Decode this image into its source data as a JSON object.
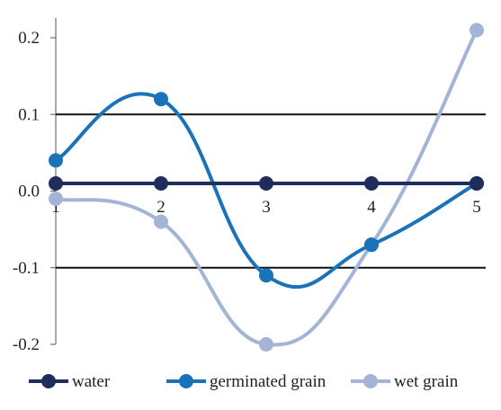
{
  "chart_data": {
    "type": "line",
    "smooth": true,
    "x": [
      1,
      2,
      3,
      4,
      5
    ],
    "x_tick_labels": [
      "1",
      "2",
      "3",
      "4",
      "5"
    ],
    "ylim": [
      -0.2,
      0.2
    ],
    "y_ticks": [
      0.2,
      0.1,
      0.0,
      -0.1,
      -0.2
    ],
    "y_tick_labels": [
      "0.2",
      "0.1",
      "0.0",
      "-0.1",
      "-0.2"
    ],
    "reference_lines": [
      0.1,
      -0.1
    ],
    "legend_position": "bottom",
    "series": [
      {
        "name": "water",
        "color": "#1f2d5c",
        "values": [
          0.01,
          0.01,
          0.01,
          0.01,
          0.01
        ]
      },
      {
        "name": "germinated grain",
        "color": "#1a73b8",
        "values": [
          0.04,
          0.12,
          -0.11,
          -0.07,
          0.01
        ]
      },
      {
        "name": "wet grain",
        "color": "#a3b4d6",
        "values": [
          -0.01,
          -0.04,
          -0.2,
          -0.07,
          0.21
        ]
      }
    ]
  }
}
